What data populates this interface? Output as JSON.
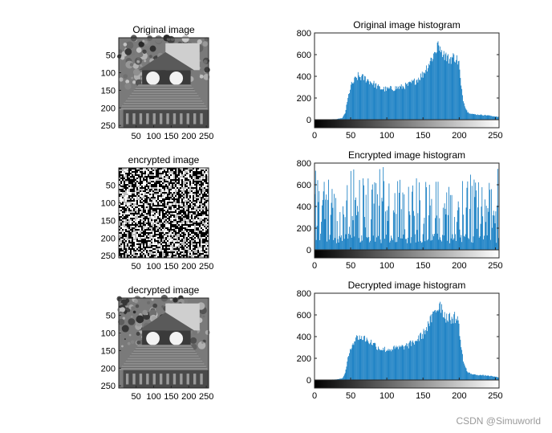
{
  "watermark": "CSDN @Simuworld",
  "colors": {
    "bar": "#0072BD",
    "axis": "#262626"
  },
  "chart_data": [
    {
      "type": "image",
      "id": "original",
      "title": "Original image",
      "image_kind": "gray photo (building with clock)",
      "x_ticks": [
        50,
        100,
        150,
        200,
        250
      ],
      "y_ticks": [
        50,
        100,
        150,
        200,
        250
      ],
      "xlim": [
        0.5,
        256.5
      ],
      "ylim": [
        0.5,
        256.5
      ]
    },
    {
      "type": "bar",
      "id": "original-hist",
      "title": "Original image histogram",
      "xlim": [
        0,
        255
      ],
      "ylim": [
        0,
        800
      ],
      "x_ticks": [
        0,
        50,
        100,
        150,
        200,
        250
      ],
      "y_ticks": [
        0,
        200,
        400,
        600,
        800
      ],
      "colorbar": "gray",
      "profile": [
        [
          0,
          0
        ],
        [
          30,
          5
        ],
        [
          38,
          15
        ],
        [
          42,
          60
        ],
        [
          45,
          160
        ],
        [
          48,
          260
        ],
        [
          50,
          310
        ],
        [
          55,
          360
        ],
        [
          60,
          400
        ],
        [
          70,
          380
        ],
        [
          80,
          340
        ],
        [
          90,
          290
        ],
        [
          100,
          280
        ],
        [
          110,
          290
        ],
        [
          120,
          300
        ],
        [
          130,
          320
        ],
        [
          140,
          360
        ],
        [
          150,
          420
        ],
        [
          160,
          540
        ],
        [
          165,
          600
        ],
        [
          170,
          660
        ],
        [
          174,
          700
        ],
        [
          178,
          620
        ],
        [
          185,
          560
        ],
        [
          195,
          580
        ],
        [
          200,
          520
        ],
        [
          203,
          300
        ],
        [
          207,
          150
        ],
        [
          212,
          70
        ],
        [
          220,
          50
        ],
        [
          240,
          40
        ],
        [
          250,
          30
        ],
        [
          255,
          25
        ]
      ]
    },
    {
      "type": "image",
      "id": "encrypted",
      "title": "encrypted image",
      "image_kind": "random noise",
      "x_ticks": [
        50,
        100,
        150,
        200,
        250
      ],
      "y_ticks": [
        50,
        100,
        150,
        200,
        250
      ],
      "xlim": [
        0.5,
        256.5
      ],
      "ylim": [
        0.5,
        256.5
      ]
    },
    {
      "type": "bar",
      "id": "encrypted-hist",
      "title": "Encrypted image histogram",
      "xlim": [
        0,
        255
      ],
      "ylim": [
        0,
        800
      ],
      "x_ticks": [
        0,
        50,
        100,
        150,
        200,
        250
      ],
      "y_ticks": [
        0,
        200,
        400,
        600,
        800
      ],
      "colorbar": "gray",
      "profile": "sparse spikes 200-750"
    },
    {
      "type": "image",
      "id": "decrypted",
      "title": "decrypted image",
      "image_kind": "gray photo (building with clock)",
      "x_ticks": [
        50,
        100,
        150,
        200,
        250
      ],
      "y_ticks": [
        50,
        100,
        150,
        200,
        250
      ],
      "xlim": [
        0.5,
        256.5
      ],
      "ylim": [
        0.5,
        256.5
      ]
    },
    {
      "type": "bar",
      "id": "decrypted-hist",
      "title": "Decrypted image histogram",
      "xlim": [
        0,
        255
      ],
      "ylim": [
        0,
        800
      ],
      "x_ticks": [
        0,
        50,
        100,
        150,
        200,
        250
      ],
      "y_ticks": [
        0,
        200,
        400,
        600,
        800
      ],
      "colorbar": "gray",
      "profile": [
        [
          0,
          0
        ],
        [
          30,
          5
        ],
        [
          38,
          15
        ],
        [
          42,
          60
        ],
        [
          45,
          160
        ],
        [
          48,
          260
        ],
        [
          50,
          310
        ],
        [
          55,
          360
        ],
        [
          60,
          400
        ],
        [
          70,
          380
        ],
        [
          80,
          340
        ],
        [
          90,
          290
        ],
        [
          100,
          280
        ],
        [
          110,
          290
        ],
        [
          120,
          300
        ],
        [
          130,
          320
        ],
        [
          140,
          360
        ],
        [
          150,
          420
        ],
        [
          160,
          540
        ],
        [
          165,
          600
        ],
        [
          170,
          660
        ],
        [
          174,
          700
        ],
        [
          178,
          620
        ],
        [
          185,
          560
        ],
        [
          195,
          580
        ],
        [
          200,
          520
        ],
        [
          203,
          300
        ],
        [
          207,
          150
        ],
        [
          212,
          70
        ],
        [
          220,
          50
        ],
        [
          240,
          40
        ],
        [
          250,
          30
        ],
        [
          255,
          25
        ]
      ]
    }
  ]
}
